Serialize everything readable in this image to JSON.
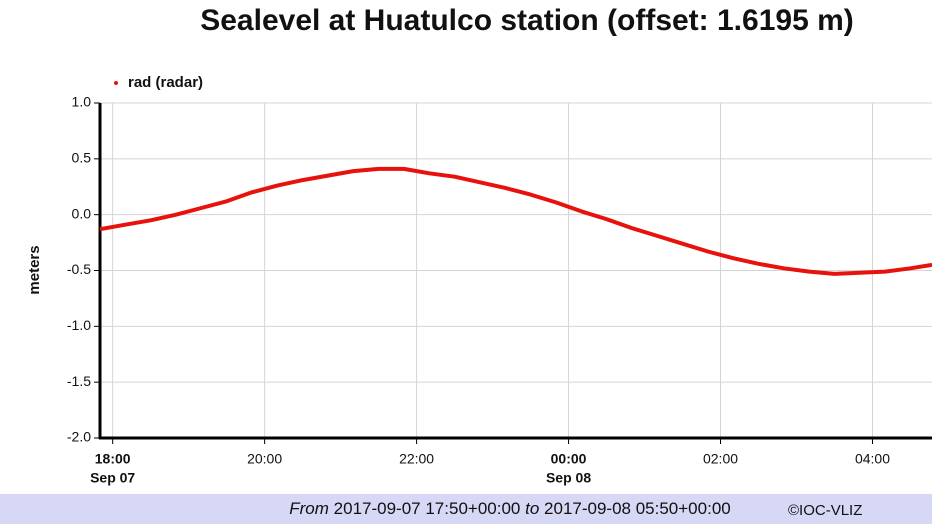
{
  "chart_data": {
    "type": "line",
    "title": "Sealevel at Huatulco station (offset: 1.6195 m)",
    "y_label": "meters",
    "x": [
      "2017-09-07 17:50",
      "2017-09-07 18:10",
      "2017-09-07 18:30",
      "2017-09-07 18:50",
      "2017-09-07 19:10",
      "2017-09-07 19:30",
      "2017-09-07 19:50",
      "2017-09-07 20:10",
      "2017-09-07 20:30",
      "2017-09-07 20:50",
      "2017-09-07 21:10",
      "2017-09-07 21:30",
      "2017-09-07 21:50",
      "2017-09-07 22:10",
      "2017-09-07 22:30",
      "2017-09-07 22:50",
      "2017-09-07 23:10",
      "2017-09-07 23:30",
      "2017-09-07 23:50",
      "2017-09-08 00:10",
      "2017-09-08 00:30",
      "2017-09-08 00:50",
      "2017-09-08 01:10",
      "2017-09-08 01:30",
      "2017-09-08 01:50",
      "2017-09-08 02:10",
      "2017-09-08 02:30",
      "2017-09-08 02:50",
      "2017-09-08 03:10",
      "2017-09-08 03:30",
      "2017-09-08 03:50",
      "2017-09-08 04:10",
      "2017-09-08 04:30",
      "2017-09-08 04:47"
    ],
    "series": [
      {
        "name": "rad (radar)",
        "color": "#e8120c",
        "values": [
          -0.13,
          -0.09,
          -0.05,
          0.0,
          0.06,
          0.12,
          0.2,
          0.26,
          0.31,
          0.35,
          0.39,
          0.41,
          0.41,
          0.37,
          0.34,
          0.29,
          0.24,
          0.18,
          0.11,
          0.03,
          -0.04,
          -0.12,
          -0.19,
          -0.26,
          -0.33,
          -0.39,
          -0.44,
          -0.48,
          -0.51,
          -0.53,
          -0.52,
          -0.51,
          -0.48,
          -0.45
        ]
      }
    ],
    "xlim": [
      "2017-09-07 17:50",
      "2017-09-08 04:47"
    ],
    "xticks": [
      {
        "value": "2017-09-07 18:00",
        "label": "18:00"
      },
      {
        "value": "2017-09-07 20:00",
        "label": "20:00"
      },
      {
        "value": "2017-09-07 22:00",
        "label": "22:00"
      },
      {
        "value": "2017-09-08 00:00",
        "label": "00:00"
      },
      {
        "value": "2017-09-08 02:00",
        "label": "02:00"
      },
      {
        "value": "2017-09-08 04:00",
        "label": "04:00"
      }
    ],
    "x_date_labels": [
      {
        "value": "2017-09-07 18:00",
        "label": "Sep 07"
      },
      {
        "value": "2017-09-08 00:00",
        "label": "Sep 08"
      }
    ],
    "ylim": [
      -2,
      1
    ],
    "yticks": [
      {
        "value": -2,
        "label": "-2.0"
      },
      -1.5,
      {
        "value": -1,
        "label": "-1.0"
      },
      -0.5,
      {
        "value": 0,
        "label": "0.0"
      },
      0.5,
      {
        "value": 1,
        "label": "1.0"
      }
    ],
    "grid": true,
    "legend": "top-left",
    "footer": {
      "from_label": "From",
      "start": "2017-09-07 17:50+00:00",
      "to_label": "to",
      "end": "2017-09-08 05:50+00:00",
      "credit": "©IOC-VLIZ"
    }
  }
}
